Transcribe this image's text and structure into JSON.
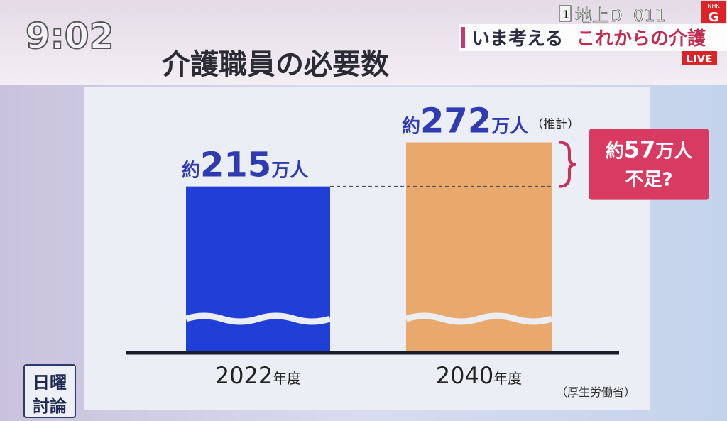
{
  "clock": "9:02",
  "channel": {
    "number": "1",
    "name": "地上D",
    "code": "011"
  },
  "logo": {
    "brand": "NHK",
    "channel": "G"
  },
  "program_banner": {
    "lead": "いま考える",
    "topic": "これからの介護"
  },
  "live": "LIVE",
  "corner_badge": [
    "日曜",
    "討論"
  ],
  "chart_data": {
    "type": "bar",
    "title": "介護職員の必要数",
    "categories": [
      "2022年度",
      "2040年度"
    ],
    "values": [
      215,
      272
    ],
    "value_labels": [
      "約215万人",
      "約272万人"
    ],
    "colors": [
      "#1f3fd6",
      "#e9a86c"
    ],
    "estimate_note": "（推計）",
    "annotation": [
      "約57万人",
      "不足?"
    ],
    "source": "（厚生労働省）"
  }
}
